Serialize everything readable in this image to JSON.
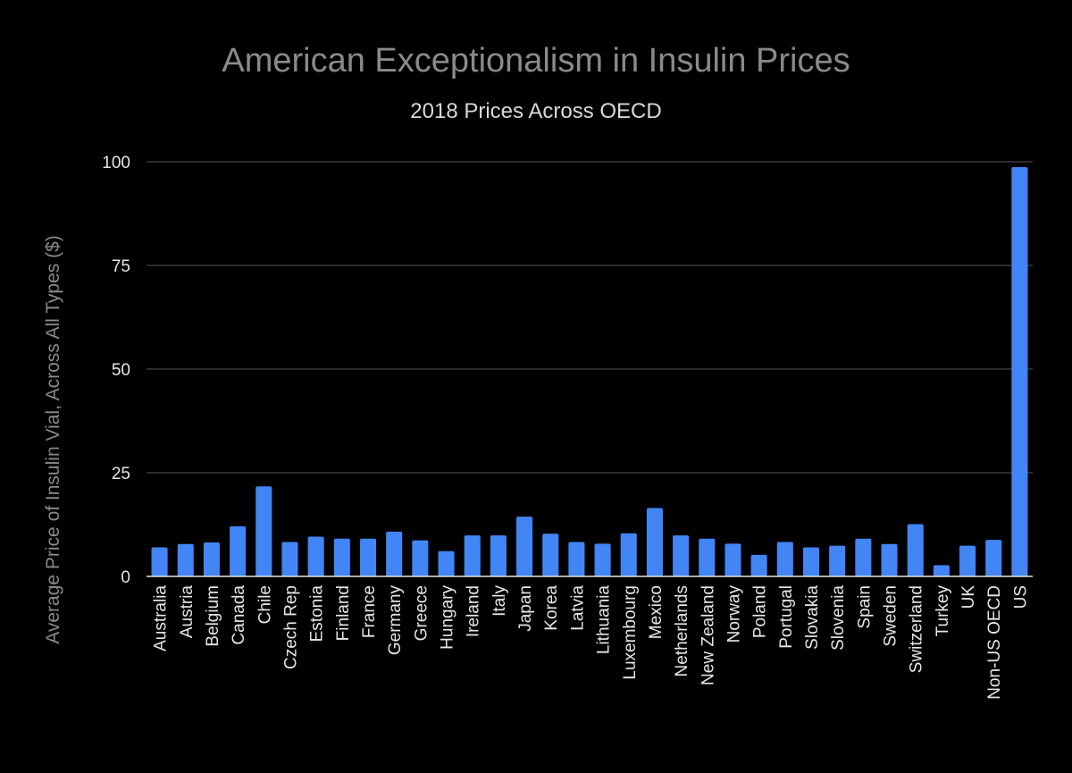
{
  "chart_data": {
    "type": "bar",
    "title": "American Exceptionalism in Insulin Prices",
    "subtitle": "2018 Prices Across OECD",
    "xlabel": "",
    "ylabel": "Average Price of Insulin Vial, Across All Types ($)",
    "ylim": [
      0,
      100
    ],
    "yticks": [
      0,
      25,
      50,
      75,
      100
    ],
    "grid": true,
    "bar_color": "#4285f4",
    "categories": [
      "Australia",
      "Austria",
      "Belgium",
      "Canada",
      "Chile",
      "Czech Rep",
      "Estonia",
      "Finland",
      "France",
      "Germany",
      "Greece",
      "Hungary",
      "Ireland",
      "Italy",
      "Japan",
      "Korea",
      "Latvia",
      "Lithuania",
      "Luxembourg",
      "Mexico",
      "Netherlands",
      "New Zealand",
      "Norway",
      "Poland",
      "Portugal",
      "Slovakia",
      "Slovenia",
      "Spain",
      "Sweden",
      "Switzerland",
      "Turkey",
      "UK",
      "Non-US OECD",
      "US"
    ],
    "values": [
      7.0,
      7.8,
      8.2,
      12.1,
      21.7,
      8.3,
      9.6,
      9.1,
      9.1,
      10.8,
      8.7,
      6.1,
      9.9,
      9.9,
      14.4,
      10.3,
      8.3,
      7.9,
      10.4,
      16.5,
      9.9,
      9.1,
      7.9,
      5.2,
      8.3,
      7.0,
      7.4,
      9.1,
      7.8,
      12.6,
      2.7,
      7.4,
      8.8,
      98.7
    ]
  }
}
